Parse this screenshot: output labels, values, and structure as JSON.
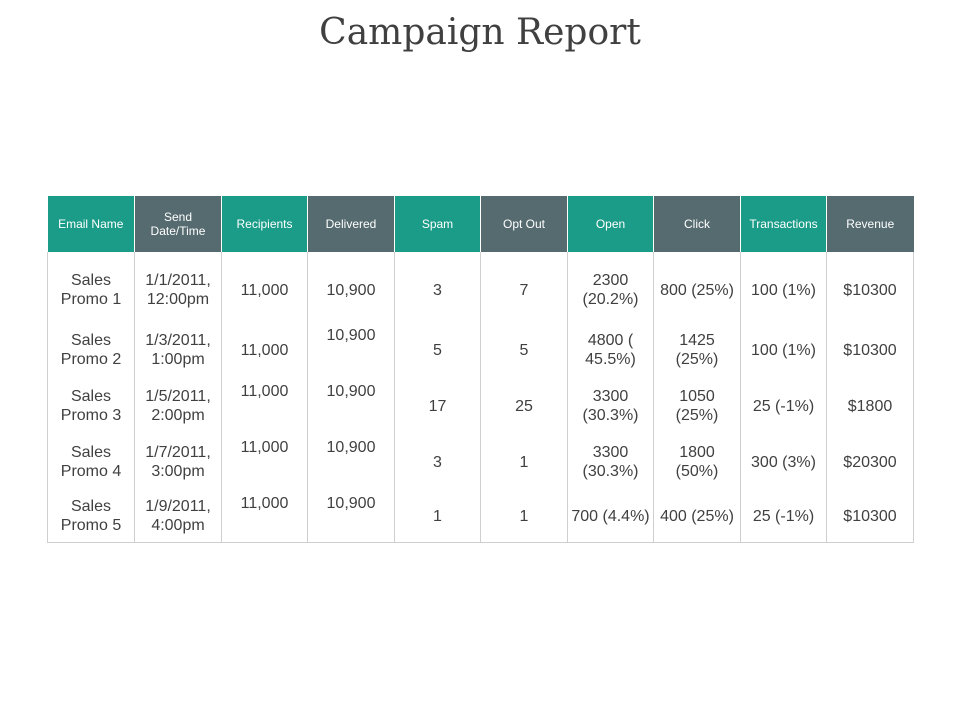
{
  "title": "Campaign Report",
  "colors": {
    "teal": "#1a9c88",
    "slate": "#566b70",
    "text": "#404040",
    "border": "#cfcfcf"
  },
  "table": {
    "headers": [
      {
        "label": "Email Name",
        "color": "teal"
      },
      {
        "label": "Send Date/Time",
        "color": "slate"
      },
      {
        "label": "Recipients",
        "color": "teal"
      },
      {
        "label": "Delivered",
        "color": "slate"
      },
      {
        "label": "Spam",
        "color": "teal"
      },
      {
        "label": "Opt Out",
        "color": "slate"
      },
      {
        "label": "Open",
        "color": "teal"
      },
      {
        "label": "Click",
        "color": "slate"
      },
      {
        "label": "Transactions",
        "color": "teal"
      },
      {
        "label": "Revenue",
        "color": "slate"
      }
    ],
    "rows": [
      {
        "email_name": "Sales Promo 1",
        "send_datetime": "1/1/2011, 12:00pm",
        "recipients": "11,000",
        "delivered": "10,900",
        "spam": "3",
        "opt_out": "7",
        "open": "2300 (20.2%)",
        "click": "800 (25%)",
        "transactions": "100 (1%)",
        "revenue": "$10300"
      },
      {
        "email_name": "Sales Promo 2",
        "send_datetime": "1/3/2011, 1:00pm",
        "recipients": "11,000",
        "delivered": "10,900",
        "spam": "5",
        "opt_out": "5",
        "open": "4800 ( 45.5%)",
        "click": "1425 (25%)",
        "transactions": "100 (1%)",
        "revenue": "$10300"
      },
      {
        "email_name": "Sales Promo 3",
        "send_datetime": "1/5/2011, 2:00pm",
        "recipients": "11,000",
        "delivered": "10,900",
        "spam": "17",
        "opt_out": "25",
        "open": "3300 (30.3%)",
        "click": "1050 (25%)",
        "transactions": "25 (-1%)",
        "revenue": "$1800"
      },
      {
        "email_name": "Sales Promo 4",
        "send_datetime": "1/7/2011, 3:00pm",
        "recipients": "11,000",
        "delivered": "10,900",
        "spam": "3",
        "opt_out": "1",
        "open": "3300 (30.3%)",
        "click": "1800 (50%)",
        "transactions": "300 (3%)",
        "revenue": "$20300"
      },
      {
        "email_name": "Sales Promo 5",
        "send_datetime": "1/9/2011, 4:00pm",
        "recipients": "11,000",
        "delivered": "10,900",
        "spam": "1",
        "opt_out": "1",
        "open": "700 (4.4%)",
        "click": "400 (25%)",
        "transactions": "25 (-1%)",
        "revenue": "$10300"
      }
    ]
  }
}
